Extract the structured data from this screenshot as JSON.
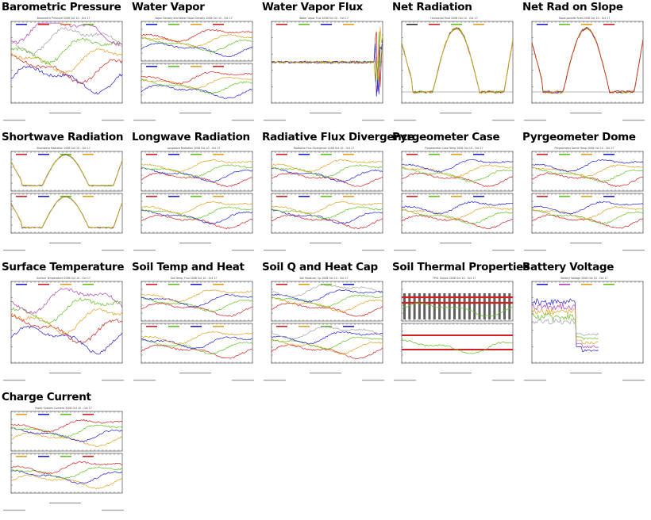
{
  "gallery": {
    "panels": [
      {
        "title": "Barometric Pressure",
        "subtitle": "Barometric Pressure 2008 Oct 10 - Oct 17",
        "layout": "single",
        "colors": [
          "#1f1fd0",
          "#d02020",
          "#e0a020",
          "#60c020",
          "#a0a0a0",
          "#b040b0"
        ],
        "icon": "barometer-chart"
      },
      {
        "title": "Water Vapor",
        "subtitle": "Vapor Density and Water Vapor Density 2008 Oct 10 - Oct 17",
        "layout": "double",
        "colors": [
          "#1f1fd0",
          "#60c020",
          "#e0a020",
          "#d02020"
        ],
        "icon": "water-vapor-chart"
      },
      {
        "title": "Water Vapor Flux",
        "subtitle": "Water Vapor Flux 2008 Oct 10 - Oct 17",
        "layout": "flux",
        "colors": [
          "#d02020",
          "#60c020",
          "#1f1fd0",
          "#e0a020"
        ],
        "icon": "flux-chart"
      },
      {
        "title": "Net Radiation",
        "subtitle": "Horizontal Rnet 2008 Oct 10 - Oct 17",
        "layout": "dome",
        "colors": [
          "#303030",
          "#d02020",
          "#60c020",
          "#e0a020"
        ],
        "icon": "net-radiation-chart"
      },
      {
        "title": "Net Rad on Slope",
        "subtitle": "Slope-parallel Rnet 2008 Oct 10 - Oct 17",
        "layout": "dome",
        "colors": [
          "#1f1fd0",
          "#60c020",
          "#e0a020",
          "#d02020"
        ],
        "icon": "slope-radiation-chart"
      },
      {
        "title": "Shortwave Radiation",
        "subtitle": "Shortwave Radiation 2008 Oct 10 - Oct 17",
        "layout": "double-dome",
        "colors": [
          "#d02020",
          "#1f1fd0",
          "#60c020",
          "#e0a020"
        ],
        "icon": "shortwave-chart"
      },
      {
        "title": "Longwave Radiation",
        "subtitle": "Longwave Radiation 2008 Oct 10 - Oct 17",
        "layout": "double",
        "colors": [
          "#d02020",
          "#1f1fd0",
          "#60c020",
          "#e0a020"
        ],
        "icon": "longwave-chart"
      },
      {
        "title": "Radiative Flux Divergence",
        "subtitle": "Radiative Flux Divergence 2008 Oct 10 - Oct 17",
        "layout": "double",
        "colors": [
          "#d02020",
          "#1f1fd0",
          "#60c020",
          "#e0a020"
        ],
        "icon": "divergence-chart"
      },
      {
        "title": "Pyrgeometer Case",
        "subtitle": "Pyrgeometer Case Temp 2008 Oct 10 - Oct 17",
        "layout": "double",
        "colors": [
          "#d02020",
          "#60c020",
          "#e0a020",
          "#1f1fd0"
        ],
        "icon": "pyrgeometer-case-chart"
      },
      {
        "title": "Pyrgeometer Dome",
        "subtitle": "Pyrgeometer Dome Temp 2008 Oct 10 - Oct 17",
        "layout": "double",
        "colors": [
          "#d02020",
          "#60c020",
          "#e0a020",
          "#1f1fd0"
        ],
        "icon": "pyrgeometer-dome-chart"
      },
      {
        "title": "Surface Temperature",
        "subtitle": "Surface Temperature 2008 Oct 10 - Oct 17",
        "layout": "single",
        "colors": [
          "#1f1fd0",
          "#d02020",
          "#e0a020",
          "#60c020",
          "#b040b0"
        ],
        "icon": "surface-temp-chart"
      },
      {
        "title": "Soil Temp and Heat",
        "subtitle": "Soil Temp, Flux 2008 Oct 10 - Oct 17",
        "layout": "double",
        "colors": [
          "#d02020",
          "#60c020",
          "#1f1fd0",
          "#e0a020"
        ],
        "icon": "soil-temp-chart"
      },
      {
        "title": "Soil Q and Heat Cap",
        "subtitle": "Soil Moisture, Cp 2008 Oct 10 - Oct 17",
        "layout": "double",
        "colors": [
          "#d02020",
          "#e0a020",
          "#60c020",
          "#1f1fd0",
          "#a0a0a0"
        ],
        "icon": "soil-moisture-chart"
      },
      {
        "title": "Soil Thermal Properties",
        "subtitle": "TP01 Output 2008 Oct 10 - Oct 17",
        "layout": "bars",
        "colors": [
          "#d02020",
          "#60c020",
          "#303030",
          "#e0a020"
        ],
        "icon": "soil-thermal-chart"
      },
      {
        "title": "Battery Voltage",
        "subtitle": "Battery Voltage 2008 Oct 10 - Oct 17",
        "layout": "battery",
        "colors": [
          "#1f1fd0",
          "#b040b0",
          "#e0a020",
          "#60c020",
          "#a0a0a0"
        ],
        "icon": "battery-chart"
      },
      {
        "title": "Charge Current",
        "subtitle": "Power System Currents 2008 Oct 10 - Oct 17",
        "layout": "double",
        "colors": [
          "#e0a020",
          "#1f1fd0",
          "#60c020",
          "#d02020"
        ],
        "icon": "charge-current-chart"
      }
    ]
  }
}
